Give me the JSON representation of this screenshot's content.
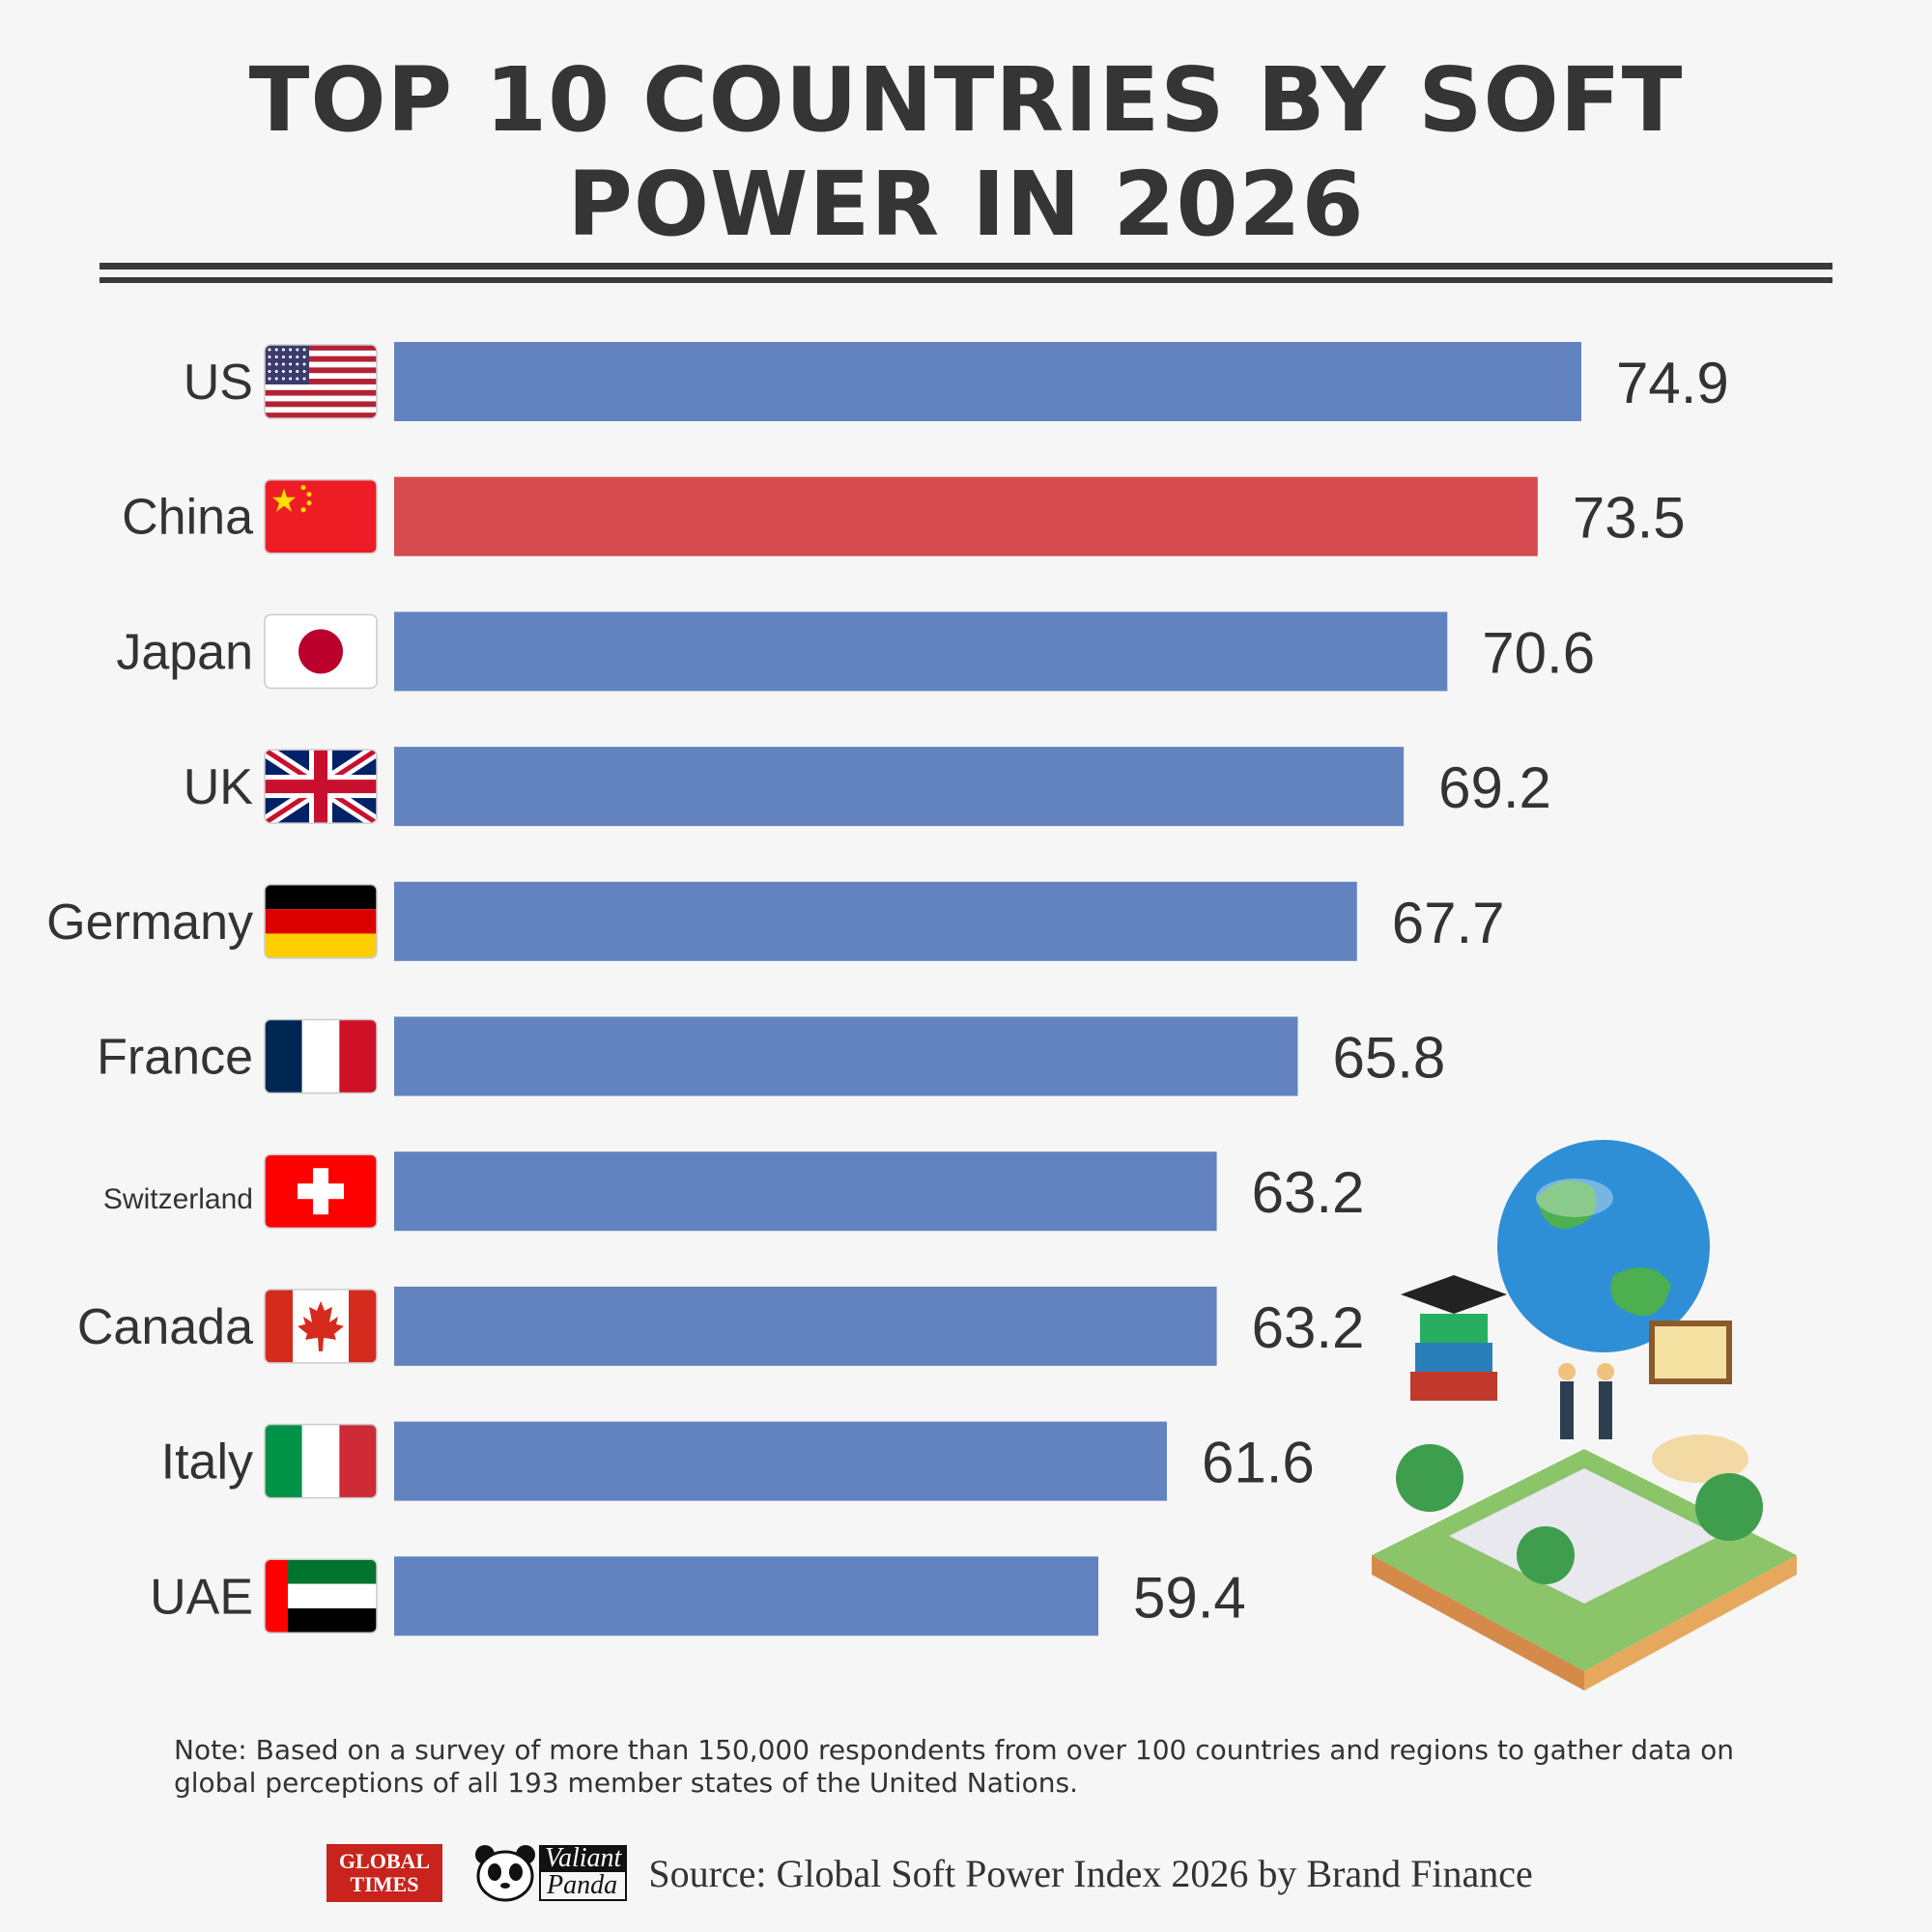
{
  "title": "TOP 10 COUNTRIES BY SOFT POWER IN 2026",
  "colors": {
    "bar": "#6383c0",
    "highlight": "#d64b4f",
    "text": "#333333"
  },
  "chart_data": {
    "type": "bar",
    "orientation": "horizontal",
    "title": "TOP 10 COUNTRIES BY SOFT POWER IN 2026",
    "xlabel": "",
    "ylabel": "",
    "categories": [
      "US",
      "China",
      "Japan",
      "UK",
      "Germany",
      "France",
      "Switzerland",
      "Canada",
      "Italy",
      "UAE"
    ],
    "values": [
      74.9,
      73.5,
      70.6,
      69.2,
      67.7,
      65.8,
      63.2,
      63.2,
      61.6,
      59.4
    ],
    "value_labels": [
      "74.9",
      "73.5",
      "70.6",
      "69.2",
      "67.7",
      "65.8",
      "63.2",
      "63.2",
      "61.6",
      "59.4"
    ],
    "highlight": "China",
    "flags": [
      "us-flag",
      "china-flag",
      "japan-flag",
      "uk-flag",
      "germany-flag",
      "france-flag",
      "switzerland-flag",
      "canada-flag",
      "italy-flag",
      "uae-flag"
    ],
    "xlim": [
      36.8,
      74.9
    ],
    "grid": false,
    "legend": "none"
  },
  "note": "Note: Based on a survey of more than 150,000 respondents from over 100 countries and regions to gather data on global perceptions of all 193 member states of the United Nations.",
  "footer": {
    "logo_global_times": [
      "GLOBAL",
      "TIMES"
    ],
    "logo_valiant_panda": [
      "Valiant",
      "Panda"
    ],
    "source": "Source: Global Soft Power Index 2026 by Brand Finance"
  }
}
